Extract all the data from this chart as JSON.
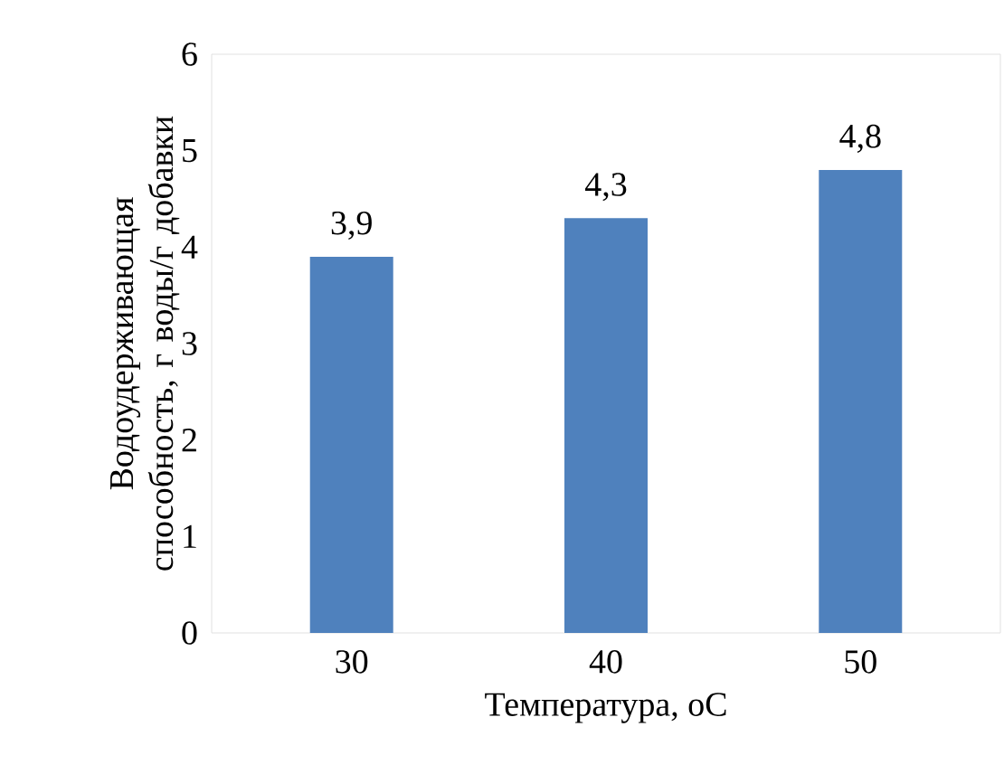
{
  "chart_data": {
    "type": "bar",
    "xlabel": "Температура, оС",
    "ylabel": "Водоудерживающая способность, г воды/г добавки",
    "categories": [
      "30",
      "40",
      "50"
    ],
    "values": [
      3.9,
      4.3,
      4.8
    ],
    "value_labels": [
      "3,9",
      "4,3",
      "4,8"
    ],
    "color": "#4f81bd",
    "ylim": [
      0,
      6
    ],
    "yticks": [
      0,
      1,
      2,
      3,
      4,
      5,
      6
    ],
    "grid": false,
    "legend": false
  }
}
